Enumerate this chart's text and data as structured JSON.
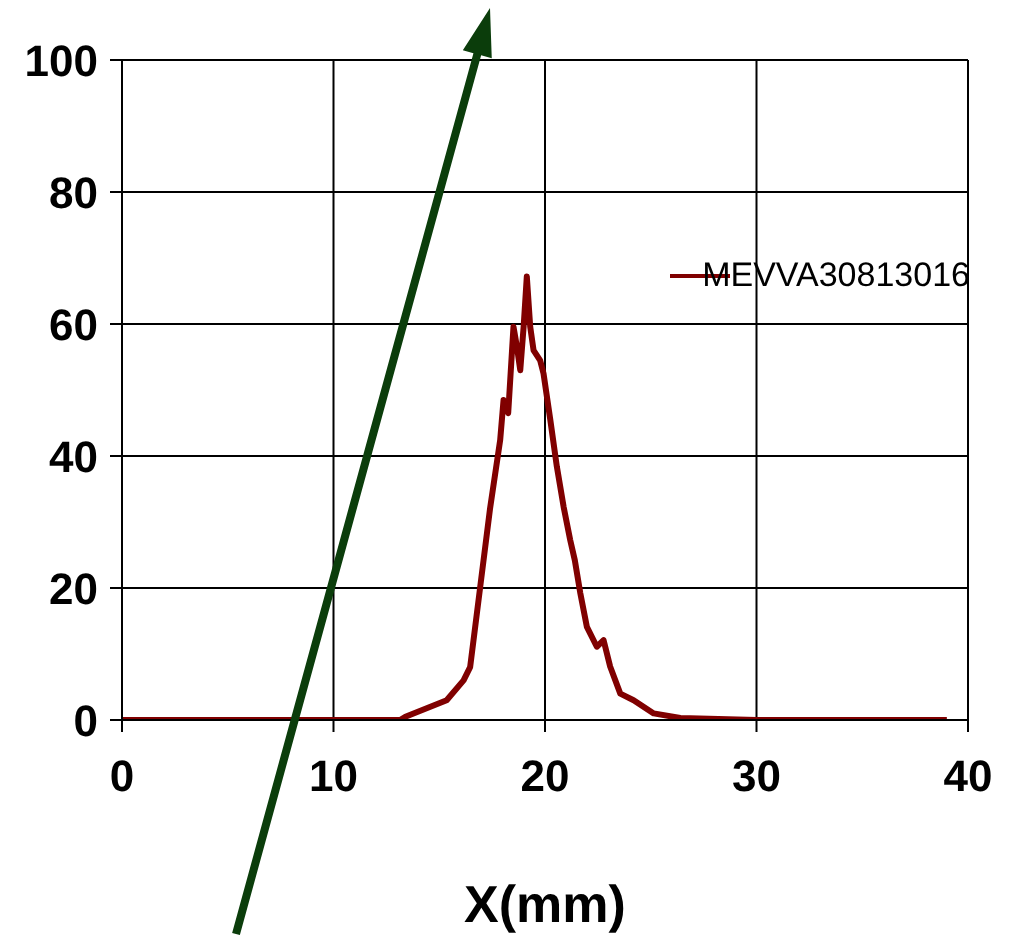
{
  "chart_data": {
    "type": "line",
    "xlabel": "X(mm)",
    "xlim": [
      0,
      40
    ],
    "xticks": [
      0,
      10,
      20,
      30,
      40
    ],
    "ylim": [
      0,
      100
    ],
    "yticks": [
      0,
      20,
      40,
      60,
      80,
      100
    ],
    "grid": true,
    "legend": "top right",
    "marker": "none",
    "line_style": "solid",
    "series": [
      {
        "name": "MEVVA30813016",
        "color": "#800000",
        "x": [
          0,
          5,
          10,
          13.15,
          13.4,
          15.35,
          16.15,
          16.46,
          16.93,
          17.4,
          17.88,
          18.04,
          18.26,
          18.51,
          18.67,
          18.83,
          18.99,
          19.14,
          19.3,
          19.46,
          19.77,
          19.93,
          20.25,
          20.56,
          20.88,
          21.19,
          21.41,
          21.67,
          21.98,
          22.45,
          22.77,
          23.08,
          23.56,
          24.19,
          25.14,
          26.4,
          30,
          35,
          39
        ],
        "values": [
          0,
          0,
          0,
          0,
          0.5,
          3,
          6,
          8,
          20,
          32,
          42.4,
          48.5,
          46.5,
          59.6,
          56.6,
          53,
          59.6,
          67.2,
          59.6,
          56,
          54.5,
          52.5,
          45.5,
          38.4,
          32.3,
          27.3,
          24.2,
          19.2,
          14.1,
          11.1,
          12.1,
          8.1,
          4,
          3,
          1,
          0.3,
          0,
          0,
          0
        ]
      }
    ]
  }
}
